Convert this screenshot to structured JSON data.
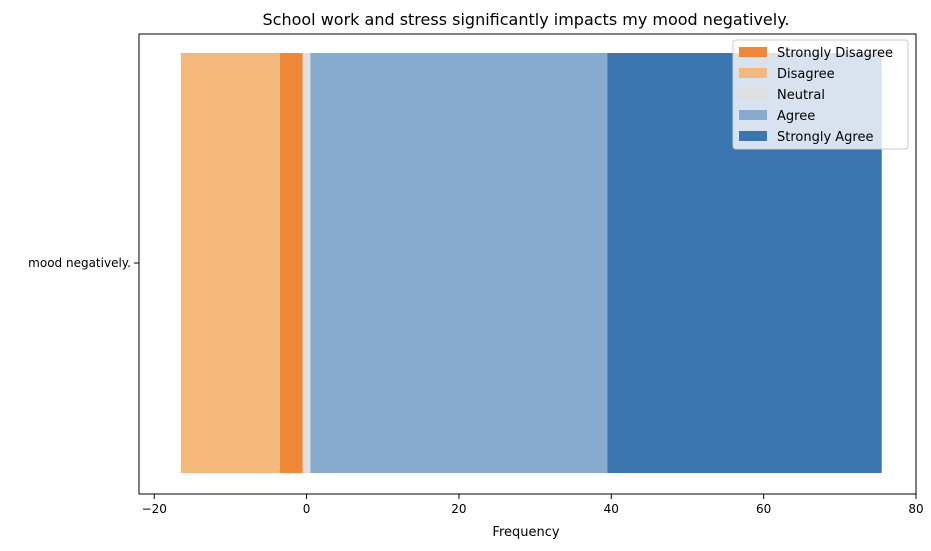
{
  "chart_data": {
    "type": "bar",
    "orientation": "horizontal",
    "stacked": "diverging",
    "title": "School work and stress significantly impacts my mood negatively.",
    "xlabel": "Frequency",
    "ylabel": "",
    "categories": [
      "mood negatively."
    ],
    "xlim": [
      -22,
      80
    ],
    "xticks": [
      -20,
      0,
      20,
      40,
      60,
      80
    ],
    "grid": false,
    "legend_position": "top-right",
    "series": [
      {
        "name": "Strongly Disagree",
        "color": "#f08838",
        "start": -3.5,
        "end": -0.5
      },
      {
        "name": "Disagree",
        "color": "#f4b87a",
        "start": -16.5,
        "end": -3.5
      },
      {
        "name": "Neutral",
        "color": "#e0e0e0",
        "start": -0.5,
        "end": 0.5
      },
      {
        "name": "Agree",
        "color": "#86abcf",
        "start": 0.5,
        "end": 39.5
      },
      {
        "name": "Strongly Agree",
        "color": "#3c76b0",
        "start": 39.5,
        "end": 75.5
      }
    ]
  }
}
